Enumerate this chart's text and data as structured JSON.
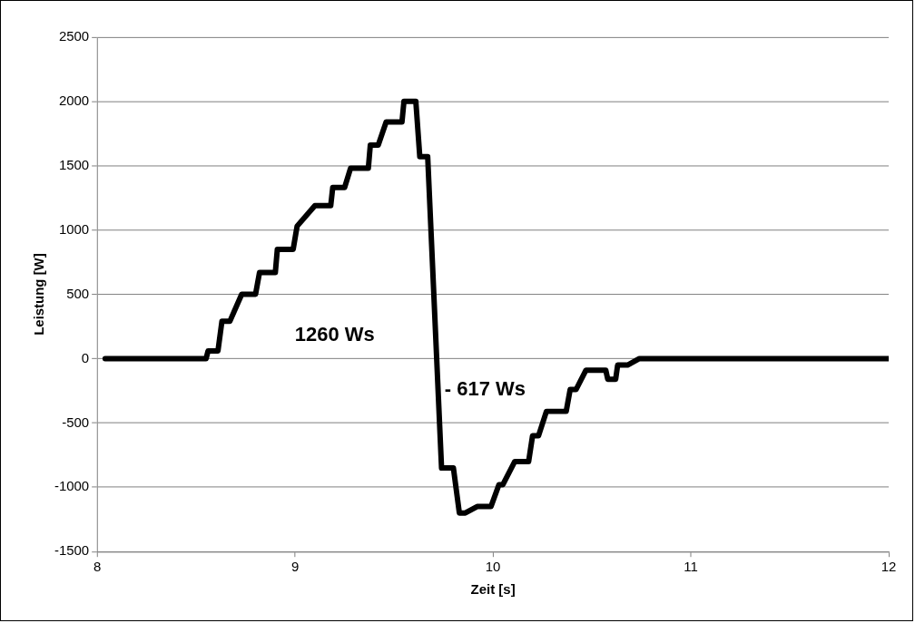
{
  "chart_data": {
    "type": "line",
    "xlabel": "Zeit [s]",
    "ylabel": "Leistung [W]",
    "x": [
      8.04,
      8.55,
      8.56,
      8.61,
      8.63,
      8.67,
      8.73,
      8.8,
      8.82,
      8.9,
      8.91,
      8.99,
      9.01,
      9.1,
      9.18,
      9.19,
      9.25,
      9.28,
      9.37,
      9.38,
      9.42,
      9.46,
      9.54,
      9.55,
      9.61,
      9.63,
      9.67,
      9.74,
      9.8,
      9.83,
      9.86,
      9.92,
      9.99,
      10.03,
      10.05,
      10.11,
      10.18,
      10.2,
      10.23,
      10.27,
      10.37,
      10.39,
      10.42,
      10.47,
      10.57,
      10.58,
      10.62,
      10.63,
      10.68,
      10.74,
      12
    ],
    "series": [
      {
        "color": "#000000",
        "values": [
          0,
          0,
          60,
          60,
          290,
          290,
          500,
          500,
          670,
          670,
          850,
          850,
          1030,
          1190,
          1190,
          1330,
          1330,
          1480,
          1480,
          1660,
          1660,
          1840,
          1840,
          2000,
          2000,
          1570,
          1570,
          -850,
          -850,
          -1200,
          -1200,
          -1150,
          -1150,
          -980,
          -980,
          -800,
          -800,
          -600,
          -600,
          -410,
          -410,
          -240,
          -240,
          -90,
          -90,
          -160,
          -160,
          -50,
          -50,
          0,
          0
        ]
      }
    ],
    "xlim": [
      8,
      12
    ],
    "xticks": [
      8,
      9,
      10,
      11,
      12
    ],
    "ylim": [
      -1500,
      2500
    ],
    "yticks": [
      -1500,
      -1000,
      -500,
      0,
      500,
      1000,
      1500,
      2000,
      2500
    ],
    "grid": "y",
    "legend": false,
    "marker": "none",
    "line_style": "solid",
    "annotations": [
      "1260 Ws",
      "- 617 Ws"
    ]
  }
}
